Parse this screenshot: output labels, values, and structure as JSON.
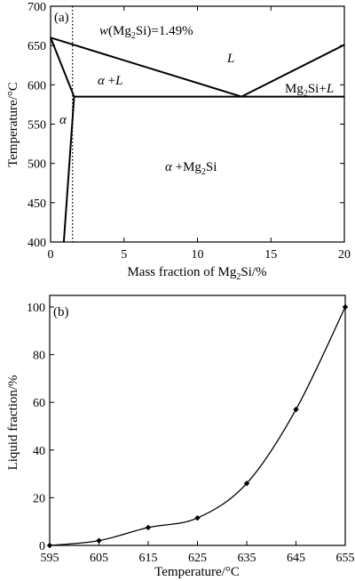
{
  "figure": {
    "panel_a": {
      "panel_label": "(a)",
      "ylabel": "Temperature/°C",
      "xlabel_main": "Mass fraction of Mg",
      "xlabel_sub": "2",
      "xlabel_tail": "Si/%",
      "annotation": {
        "prefix": "w",
        "text_open": "(Mg",
        "sub": "2",
        "text_close": "Si)=1.49%"
      },
      "regions": {
        "L": "L",
        "alpha_L": {
          "alpha": "α",
          "plus": " +",
          "L": "L"
        },
        "alpha": "α",
        "alpha_mg2si": {
          "alpha": "α",
          "plus": " +Mg",
          "sub": "2",
          "tail": "Si"
        },
        "mg2si_L": {
          "base": "Mg",
          "sub": "2",
          "mid": "Si+",
          "L": "L"
        }
      }
    },
    "panel_b": {
      "panel_label": "(b)",
      "ylabel": "Liquid fraction/%",
      "xlabel": "Temperature/°C"
    }
  },
  "chart_data": [
    {
      "type": "line",
      "panel": "a",
      "xlabel": "Mass fraction of Mg2Si/%",
      "ylabel": "Temperature/°C",
      "xlim": [
        0,
        20
      ],
      "ylim": [
        400,
        700
      ],
      "x_ticks": [
        0,
        5,
        10,
        15,
        20
      ],
      "y_ticks": [
        400,
        450,
        500,
        550,
        600,
        650,
        700
      ],
      "grid": false,
      "lines": [
        {
          "name": "liquidus_alpha",
          "points": [
            [
              0,
              660
            ],
            [
              13,
              585
            ]
          ]
        },
        {
          "name": "liquidus_mg2si",
          "points": [
            [
              13,
              585
            ],
            [
              20,
              651
            ]
          ]
        },
        {
          "name": "eutectic",
          "points": [
            [
              1.6,
              585
            ],
            [
              20,
              585
            ]
          ]
        },
        {
          "name": "solidus",
          "points": [
            [
              0,
              660
            ],
            [
              1.6,
              585
            ]
          ]
        },
        {
          "name": "solvus",
          "points": [
            [
              1.6,
              585
            ],
            [
              0.9,
              400
            ]
          ]
        }
      ],
      "reference_line": {
        "x": 1.49,
        "style": "dotted"
      },
      "annotations": [
        "w(Mg2Si)=1.49%",
        "L",
        "α +L",
        "α",
        "α +Mg2Si",
        "Mg2Si+L"
      ]
    },
    {
      "type": "line",
      "panel": "b",
      "xlabel": "Temperature/°C",
      "ylabel": "Liquid fraction/%",
      "xlim": [
        595,
        655
      ],
      "ylim": [
        0,
        100
      ],
      "x_ticks": [
        595,
        605,
        615,
        625,
        635,
        645,
        655
      ],
      "y_ticks": [
        0,
        20,
        40,
        60,
        80,
        100
      ],
      "grid": false,
      "x": [
        595,
        605,
        615,
        625,
        635,
        645,
        655
      ],
      "values": [
        0,
        2,
        7.5,
        11.5,
        26,
        57,
        100
      ]
    }
  ]
}
